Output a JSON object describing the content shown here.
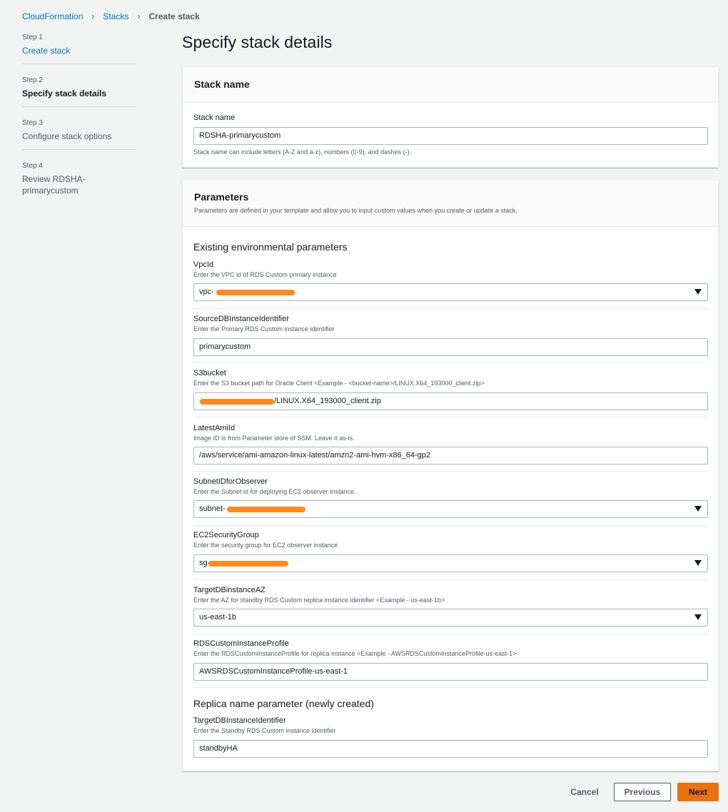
{
  "breadcrumb": {
    "items": [
      "CloudFormation",
      "Stacks"
    ],
    "current": "Create stack"
  },
  "steps": [
    {
      "num": "Step 1",
      "title": "Create stack"
    },
    {
      "num": "Step 2",
      "title": "Specify stack details"
    },
    {
      "num": "Step 3",
      "title": "Configure stack options"
    },
    {
      "num": "Step 4",
      "title": "Review RDSHA-primarycustom"
    }
  ],
  "page_title": "Specify stack details",
  "stack_name_panel": {
    "title": "Stack name",
    "label": "Stack name",
    "value": "RDSHA-primarycustom",
    "hint": "Stack name can include letters (A-Z and a-z), numbers (0-9), and dashes (-)."
  },
  "parameters_panel": {
    "title": "Parameters",
    "desc": "Parameters are defined in your template and allow you to input custom values when you create or update a stack.",
    "existing_section": "Existing environmental parameters",
    "replica_section": "Replica name parameter (newly created)",
    "fields": {
      "vpc": {
        "label": "VpcId",
        "hint": "Enter the VPC id of RDS Custom primary instance",
        "value": "vpc-"
      },
      "source": {
        "label": "SourceDBInstanceIdentifier",
        "hint": "Enter the Primary RDS Custom instance identifier",
        "value": "primarycustom"
      },
      "s3": {
        "label": "S3bucket",
        "hint": "Enter the S3 bucket path for Oracle Client <Example - <bucket-name>/LINUX.X64_193000_client.zip>",
        "value": "/LINUX.X64_193000_client.zip"
      },
      "ami": {
        "label": "LatestAmiId",
        "hint": "Image ID is from Parameter store of SSM. Leave it as-is.",
        "value": "/aws/service/ami-amazon-linux-latest/amzn2-ami-hvm-x86_64-gp2"
      },
      "subnet": {
        "label": "SubnetIDforObserver",
        "hint": "Enter the Subnet id for deploying EC2 observer Instance.",
        "value": "subnet-"
      },
      "sg": {
        "label": "EC2SecurityGroup",
        "hint": "Enter the security group for EC2 observer instance",
        "value": "sg-"
      },
      "az": {
        "label": "TargetDBinstanceAZ",
        "hint": "Enter the AZ for standby RDS Custom replica instance identifier <Example - us-east-1b>",
        "value": "us-east-1b"
      },
      "profile": {
        "label": "RDSCustomInstanceProfile",
        "hint": "Enter the RDSCustomInstanceProfile for replica instance <Example - AWSRDSCustomInstanceProfile-us-east-1>",
        "value": "AWSRDSCustomInstanceProfile-us-east-1"
      },
      "target": {
        "label": "TargetDBInstanceIdentifier",
        "hint": "Enter the Standby RDS Custom instance identifier",
        "value": "standbyHA"
      }
    }
  },
  "footer": {
    "cancel": "Cancel",
    "previous": "Previous",
    "next": "Next"
  },
  "colors": {
    "accent": "#ec7211",
    "link": "#0073bb",
    "redaction": "#ff8a1a"
  }
}
